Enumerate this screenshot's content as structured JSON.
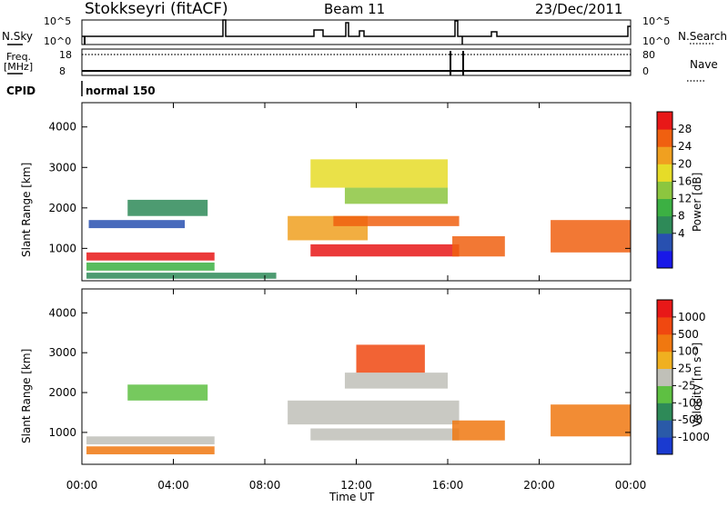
{
  "header": {
    "station": "Stokkseyri (fitACF)",
    "beam": "Beam 11",
    "date": "23/Dec/2011"
  },
  "summary": {
    "nsky_label": "N.Sky",
    "nsky_ticks": [
      "10^5",
      "10^0"
    ],
    "nsearch_label": "N.Search",
    "nsearch_ticks": [
      "10^5",
      "10^0"
    ],
    "freq_label": "Freq.",
    "freq_unit": "[MHz]",
    "freq_ticks": [
      "18",
      "8"
    ],
    "nave_label": "Nave",
    "nave_ticks": [
      "80",
      "0"
    ],
    "cpid_label": "CPID",
    "cpid_value": "normal 150"
  },
  "chart_data": [
    {
      "type": "heatmap",
      "name": "power",
      "ylabel": "Slant Range [km]",
      "ylim": [
        200,
        4600
      ],
      "yticks": [
        "4000",
        "3000",
        "2000",
        "1000"
      ],
      "xlabel": "Time UT",
      "xlim": [
        0,
        24
      ],
      "xticks": [
        "00:00",
        "04:00",
        "08:00",
        "12:00",
        "16:00",
        "20:00",
        "00:00"
      ],
      "colorbar": {
        "label": "Power [dB]",
        "ticks": [
          "28",
          "24",
          "20",
          "16",
          "12",
          "8",
          "4"
        ],
        "colors": [
          "#1818e8",
          "#2850b0",
          "#2e8a58",
          "#3cb043",
          "#8cc63f",
          "#e6dc28",
          "#f0a020",
          "#f06010",
          "#e81818"
        ]
      },
      "bands": [
        {
          "t": [
            0.2,
            5.8
          ],
          "r": [
            700,
            900
          ],
          "level": 8
        },
        {
          "t": [
            0.2,
            5.8
          ],
          "r": [
            450,
            650
          ],
          "level": 3
        },
        {
          "t": [
            0.3,
            4.5
          ],
          "r": [
            1500,
            1700
          ],
          "level": 1
        },
        {
          "t": [
            2.0,
            5.5
          ],
          "r": [
            1800,
            2200
          ],
          "level": 2
        },
        {
          "t": [
            9.0,
            12.5
          ],
          "r": [
            1200,
            1800
          ],
          "level": 6
        },
        {
          "t": [
            10.0,
            16.5
          ],
          "r": [
            800,
            1100
          ],
          "level": 8
        },
        {
          "t": [
            11.0,
            16.5
          ],
          "r": [
            1550,
            1800
          ],
          "level": 7
        },
        {
          "t": [
            11.5,
            16.0
          ],
          "r": [
            2100,
            2500
          ],
          "level": 4
        },
        {
          "t": [
            10.0,
            16.0
          ],
          "r": [
            2500,
            3200
          ],
          "level": 5
        },
        {
          "t": [
            16.2,
            18.5
          ],
          "r": [
            800,
            1300
          ],
          "level": 7
        },
        {
          "t": [
            20.5,
            24.0
          ],
          "r": [
            900,
            1700
          ],
          "level": 7
        },
        {
          "t": [
            0.2,
            8.5
          ],
          "r": [
            250,
            400
          ],
          "level": 2
        }
      ]
    },
    {
      "type": "heatmap",
      "name": "velocity",
      "ylabel": "Slant Range [km]",
      "ylim": [
        200,
        4600
      ],
      "yticks": [
        "4000",
        "3000",
        "2000",
        "1000"
      ],
      "xlabel": "Time UT",
      "xlim": [
        0,
        24
      ],
      "xticks": [
        "00:00",
        "04:00",
        "08:00",
        "12:00",
        "16:00",
        "20:00",
        "00:00"
      ],
      "colorbar": {
        "label": "Velocity [m s⁻¹]",
        "ticks": [
          "1000",
          "500",
          "100",
          "25",
          "-25",
          "-100",
          "-500",
          "-1000"
        ],
        "colors": [
          "#1a3ad0",
          "#2a5aa8",
          "#2e8a58",
          "#5ec042",
          "#c0c0b8",
          "#f0b020",
          "#f07810",
          "#f04810",
          "#e81818"
        ]
      },
      "bands": [
        {
          "t": [
            0.2,
            5.8
          ],
          "r": [
            700,
            900
          ],
          "level": 4
        },
        {
          "t": [
            0.2,
            5.8
          ],
          "r": [
            450,
            650
          ],
          "level": 6
        },
        {
          "t": [
            2.0,
            5.5
          ],
          "r": [
            1800,
            2200
          ],
          "level": 3
        },
        {
          "t": [
            9.0,
            16.5
          ],
          "r": [
            1200,
            1800
          ],
          "level": 4
        },
        {
          "t": [
            10.0,
            16.5
          ],
          "r": [
            800,
            1100
          ],
          "level": 4
        },
        {
          "t": [
            11.5,
            16.0
          ],
          "r": [
            2100,
            2500
          ],
          "level": 4
        },
        {
          "t": [
            12.0,
            15.0
          ],
          "r": [
            2500,
            3200
          ],
          "level": 7
        },
        {
          "t": [
            16.2,
            18.5
          ],
          "r": [
            800,
            1300
          ],
          "level": 6
        },
        {
          "t": [
            20.5,
            24.0
          ],
          "r": [
            900,
            1700
          ],
          "level": 6
        }
      ]
    }
  ]
}
